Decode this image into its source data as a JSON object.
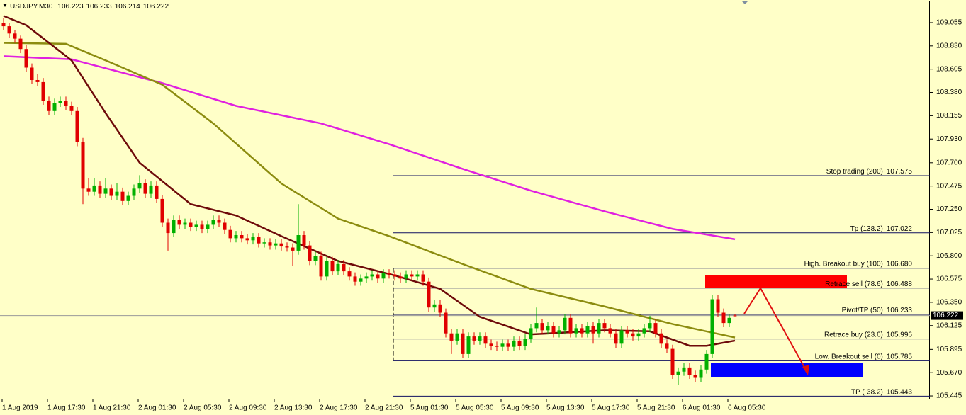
{
  "chart_data": {
    "type": "candlestick",
    "symbol": "USDJPY,M30",
    "bull_color": "#00b000",
    "bear_color": "#e00000",
    "ylim": [
      105.411,
      109.274
    ],
    "yticks": [
      109.055,
      {
        "value": 108.83,
        "label": "108.830"
      },
      108.605,
      {
        "value": 108.38,
        "label": "108.380"
      },
      108.155,
      {
        "value": 107.93,
        "label": "107.930"
      },
      {
        "value": 107.7,
        "label": "107.700"
      },
      107.475,
      {
        "value": 107.25,
        "label": "107.250"
      },
      107.025,
      {
        "value": 106.8,
        "label": "106.800"
      },
      106.575,
      {
        "value": 106.35,
        "label": "106.350"
      },
      106.125,
      105.895,
      {
        "value": 105.67,
        "label": "105.670"
      },
      105.445
    ],
    "x_labels": [
      "1 Aug 2019",
      "1 Aug 17:30",
      "1 Aug 21:30",
      "2 Aug 01:30",
      "2 Aug 05:30",
      "2 Aug 09:30",
      "2 Aug 13:30",
      "2 Aug 17:30",
      "2 Aug 21:30",
      "5 Aug 01:30",
      "5 Aug 05:30",
      "5 Aug 09:30",
      "5 Aug 13:30",
      "5 Aug 17:30",
      "5 Aug 21:30",
      "6 Aug 01:30",
      "6 Aug 05:30"
    ],
    "candles": [
      [
        109.05,
        109.1,
        108.98,
        109.02
      ],
      [
        109.02,
        109.05,
        108.91,
        108.95
      ],
      [
        108.95,
        108.98,
        108.86,
        108.9
      ],
      [
        108.9,
        108.93,
        108.76,
        108.8
      ],
      [
        108.8,
        108.84,
        108.58,
        108.62
      ],
      [
        108.62,
        108.66,
        108.46,
        108.5
      ],
      [
        108.5,
        108.56,
        108.44,
        108.48
      ],
      [
        108.48,
        108.52,
        108.26,
        108.3
      ],
      [
        108.3,
        108.34,
        108.16,
        108.2
      ],
      [
        108.2,
        108.32,
        108.16,
        108.28
      ],
      [
        108.28,
        108.34,
        108.24,
        108.3
      ],
      [
        108.3,
        108.34,
        108.21,
        108.25
      ],
      [
        108.25,
        108.29,
        108.16,
        108.2
      ],
      [
        108.2,
        108.24,
        107.86,
        107.9
      ],
      [
        107.9,
        107.94,
        107.3,
        107.45
      ],
      [
        107.45,
        107.55,
        107.38,
        107.42
      ],
      [
        107.42,
        107.55,
        107.38,
        107.48
      ],
      [
        107.48,
        107.52,
        107.36,
        107.4
      ],
      [
        107.4,
        107.55,
        107.36,
        107.45
      ],
      [
        107.45,
        107.49,
        107.34,
        107.38
      ],
      [
        107.38,
        107.5,
        107.34,
        107.42
      ],
      [
        107.42,
        107.46,
        107.29,
        107.33
      ],
      [
        107.33,
        107.42,
        107.29,
        107.38
      ],
      [
        107.38,
        107.49,
        107.34,
        107.45
      ],
      [
        107.45,
        107.58,
        107.41,
        107.5
      ],
      [
        107.5,
        107.54,
        107.36,
        107.4
      ],
      [
        107.4,
        107.52,
        107.36,
        107.48
      ],
      [
        107.48,
        107.52,
        107.31,
        107.35
      ],
      [
        107.35,
        107.39,
        107.08,
        107.12
      ],
      [
        107.12,
        107.16,
        106.85,
        107.02
      ],
      [
        107.02,
        107.19,
        106.98,
        107.15
      ],
      [
        107.15,
        107.19,
        107.06,
        107.1
      ],
      [
        107.1,
        107.16,
        107.06,
        107.12
      ],
      [
        107.12,
        107.16,
        107.04,
        107.08
      ],
      [
        107.08,
        107.14,
        107.04,
        107.1
      ],
      [
        107.1,
        107.14,
        107.02,
        107.06
      ],
      [
        107.06,
        107.14,
        107.02,
        107.1
      ],
      [
        107.1,
        107.19,
        107.06,
        107.15
      ],
      [
        107.15,
        107.19,
        107.08,
        107.12
      ],
      [
        107.12,
        107.16,
        107.01,
        107.05
      ],
      [
        107.05,
        107.09,
        106.93,
        106.97
      ],
      [
        106.97,
        107.04,
        106.93,
        107.0
      ],
      [
        107.0,
        107.04,
        106.93,
        106.97
      ],
      [
        106.97,
        107.01,
        106.91,
        106.95
      ],
      [
        106.95,
        107.02,
        106.91,
        106.98
      ],
      [
        106.98,
        107.02,
        106.88,
        106.92
      ],
      [
        106.92,
        106.97,
        106.88,
        106.93
      ],
      [
        106.93,
        106.97,
        106.86,
        106.9
      ],
      [
        106.9,
        106.96,
        106.86,
        106.92
      ],
      [
        106.92,
        106.96,
        106.85,
        106.89
      ],
      [
        106.89,
        106.93,
        106.84,
        106.88
      ],
      [
        106.88,
        106.92,
        106.7,
        106.85
      ],
      [
        106.85,
        107.3,
        106.81,
        107.0
      ],
      [
        107.0,
        107.04,
        106.86,
        106.9
      ],
      [
        106.9,
        106.94,
        106.71,
        106.75
      ],
      [
        106.75,
        106.84,
        106.71,
        106.8
      ],
      [
        106.8,
        106.84,
        106.56,
        106.6
      ],
      [
        106.6,
        106.79,
        106.56,
        106.75
      ],
      [
        106.75,
        106.79,
        106.61,
        106.65
      ],
      [
        106.65,
        106.76,
        106.61,
        106.72
      ],
      [
        106.72,
        106.76,
        106.61,
        106.65
      ],
      [
        106.65,
        106.69,
        106.56,
        106.6
      ],
      [
        106.6,
        106.64,
        106.51,
        106.55
      ],
      [
        106.55,
        106.62,
        106.51,
        106.58
      ],
      [
        106.58,
        106.64,
        106.54,
        106.6
      ],
      [
        106.6,
        106.66,
        106.56,
        106.62
      ],
      [
        106.62,
        106.66,
        106.54,
        106.58
      ],
      [
        106.58,
        106.67,
        106.54,
        106.63
      ],
      [
        106.63,
        106.67,
        106.58,
        106.62
      ],
      [
        106.62,
        106.66,
        106.56,
        106.6
      ],
      [
        106.6,
        106.64,
        106.54,
        106.58
      ],
      [
        106.58,
        106.66,
        106.54,
        106.62
      ],
      [
        106.62,
        106.66,
        106.56,
        106.6
      ],
      [
        106.6,
        106.66,
        106.56,
        106.62
      ],
      [
        106.62,
        106.66,
        106.51,
        106.55
      ],
      [
        106.55,
        106.59,
        106.26,
        106.3
      ],
      [
        106.3,
        106.37,
        106.26,
        106.33
      ],
      [
        106.33,
        106.37,
        106.21,
        106.25
      ],
      [
        106.25,
        106.29,
        106.01,
        106.05
      ],
      [
        106.05,
        106.09,
        105.85,
        105.98
      ],
      [
        105.98,
        106.09,
        105.94,
        106.05
      ],
      [
        106.05,
        106.09,
        105.81,
        105.85
      ],
      [
        105.85,
        106.06,
        105.81,
        106.02
      ],
      [
        106.02,
        106.06,
        105.94,
        105.98
      ],
      [
        105.98,
        106.06,
        105.94,
        106.02
      ],
      [
        106.02,
        106.06,
        105.91,
        105.95
      ],
      [
        105.95,
        105.99,
        105.89,
        105.93
      ],
      [
        105.93,
        105.97,
        105.88,
        105.92
      ],
      [
        105.92,
        105.99,
        105.88,
        105.95
      ],
      [
        105.95,
        105.99,
        105.88,
        105.92
      ],
      [
        105.92,
        106.02,
        105.88,
        105.98
      ],
      [
        105.98,
        106.02,
        105.89,
        105.93
      ],
      [
        105.93,
        106.04,
        105.89,
        106.0
      ],
      [
        106.0,
        106.14,
        105.96,
        106.1
      ],
      [
        106.1,
        106.3,
        106.06,
        106.15
      ],
      [
        106.15,
        106.19,
        106.04,
        106.08
      ],
      [
        106.08,
        106.16,
        106.04,
        106.12
      ],
      [
        106.12,
        106.16,
        106.01,
        106.05
      ],
      [
        106.05,
        106.12,
        106.01,
        106.08
      ],
      [
        106.08,
        106.24,
        106.04,
        106.2
      ],
      [
        106.2,
        106.24,
        106.01,
        106.05
      ],
      [
        106.05,
        106.14,
        106.01,
        106.1
      ],
      [
        106.1,
        106.14,
        106.01,
        106.05
      ],
      [
        106.05,
        106.16,
        106.01,
        106.12
      ],
      [
        106.12,
        106.16,
        105.95,
        106.05
      ],
      [
        106.05,
        106.19,
        106.01,
        106.15
      ],
      [
        106.15,
        106.19,
        106.06,
        106.1
      ],
      [
        106.1,
        106.14,
        106.01,
        106.05
      ],
      [
        106.05,
        106.09,
        105.91,
        105.95
      ],
      [
        105.95,
        106.12,
        105.91,
        106.08
      ],
      [
        106.08,
        106.12,
        106.01,
        106.05
      ],
      [
        106.05,
        106.09,
        105.98,
        106.02
      ],
      [
        106.02,
        106.09,
        105.98,
        106.05
      ],
      [
        106.05,
        106.14,
        106.01,
        106.1
      ],
      [
        106.1,
        106.22,
        106.06,
        106.15
      ],
      [
        106.15,
        106.19,
        106.01,
        106.05
      ],
      [
        106.05,
        106.09,
        105.91,
        105.95
      ],
      [
        105.95,
        105.99,
        105.86,
        105.9
      ],
      [
        105.9,
        105.94,
        105.61,
        105.65
      ],
      [
        105.65,
        105.72,
        105.55,
        105.68
      ],
      [
        105.68,
        105.76,
        105.64,
        105.72
      ],
      [
        105.72,
        105.76,
        105.61,
        105.65
      ],
      [
        105.65,
        105.69,
        105.58,
        105.62
      ],
      [
        105.62,
        105.74,
        105.58,
        105.7
      ],
      [
        105.7,
        105.89,
        105.66,
        105.85
      ],
      [
        105.85,
        106.42,
        105.81,
        106.38
      ],
      [
        106.38,
        106.42,
        106.21,
        106.25
      ],
      [
        106.25,
        106.29,
        106.11,
        106.15
      ],
      [
        106.15,
        106.24,
        106.11,
        106.2
      ],
      [
        106.223,
        106.233,
        106.214,
        106.222
      ]
    ],
    "lines": [
      {
        "color": "#e020e0",
        "x": [
          0,
          12,
          28,
          41,
          56,
          68,
          81,
          93,
          106,
          118,
          129
        ],
        "values": [
          108.73,
          108.7,
          108.47,
          108.25,
          108.08,
          107.88,
          107.64,
          107.43,
          107.23,
          107.06,
          106.96
        ]
      },
      {
        "color": "#8c8c10",
        "x": [
          0,
          11,
          18,
          28,
          37,
          49,
          59,
          68,
          81,
          93,
          106,
          118,
          129
        ],
        "values": [
          108.86,
          108.85,
          108.69,
          108.455,
          108.08,
          107.5,
          107.16,
          106.99,
          106.72,
          106.48,
          106.31,
          106.14,
          106.01
        ]
      },
      {
        "color": "#6e0a0a",
        "x": [
          0,
          4,
          12,
          18,
          24,
          33,
          41,
          49,
          59,
          69,
          77,
          84,
          93,
          106,
          114,
          121,
          124,
          129
        ],
        "values": [
          109.12,
          109.03,
          108.69,
          108.18,
          107.7,
          107.3,
          107.19,
          106.99,
          106.75,
          106.61,
          106.48,
          106.21,
          106.04,
          106.08,
          106.07,
          105.93,
          105.93,
          105.98
        ]
      }
    ],
    "levels": [
      {
        "name": "Stop trading (200)",
        "value": 107.575
      },
      {
        "name": "Tp (138.2)",
        "value": 107.022
      },
      {
        "name": "High. Breakout buy (100)",
        "value": 106.68,
        "value_label": "106.680"
      },
      {
        "name": "Retrace sell (78.6)",
        "value": 106.488
      },
      {
        "name": "Pivot/TP (50)",
        "value": 106.233
      },
      {
        "name": "Retrace buy (23.6)",
        "value": 105.996
      },
      {
        "name": "Low. Breakout sell (0)",
        "value": 105.785
      },
      {
        "name": "TP (-38.2)",
        "value": 105.443
      }
    ]
  }
}
